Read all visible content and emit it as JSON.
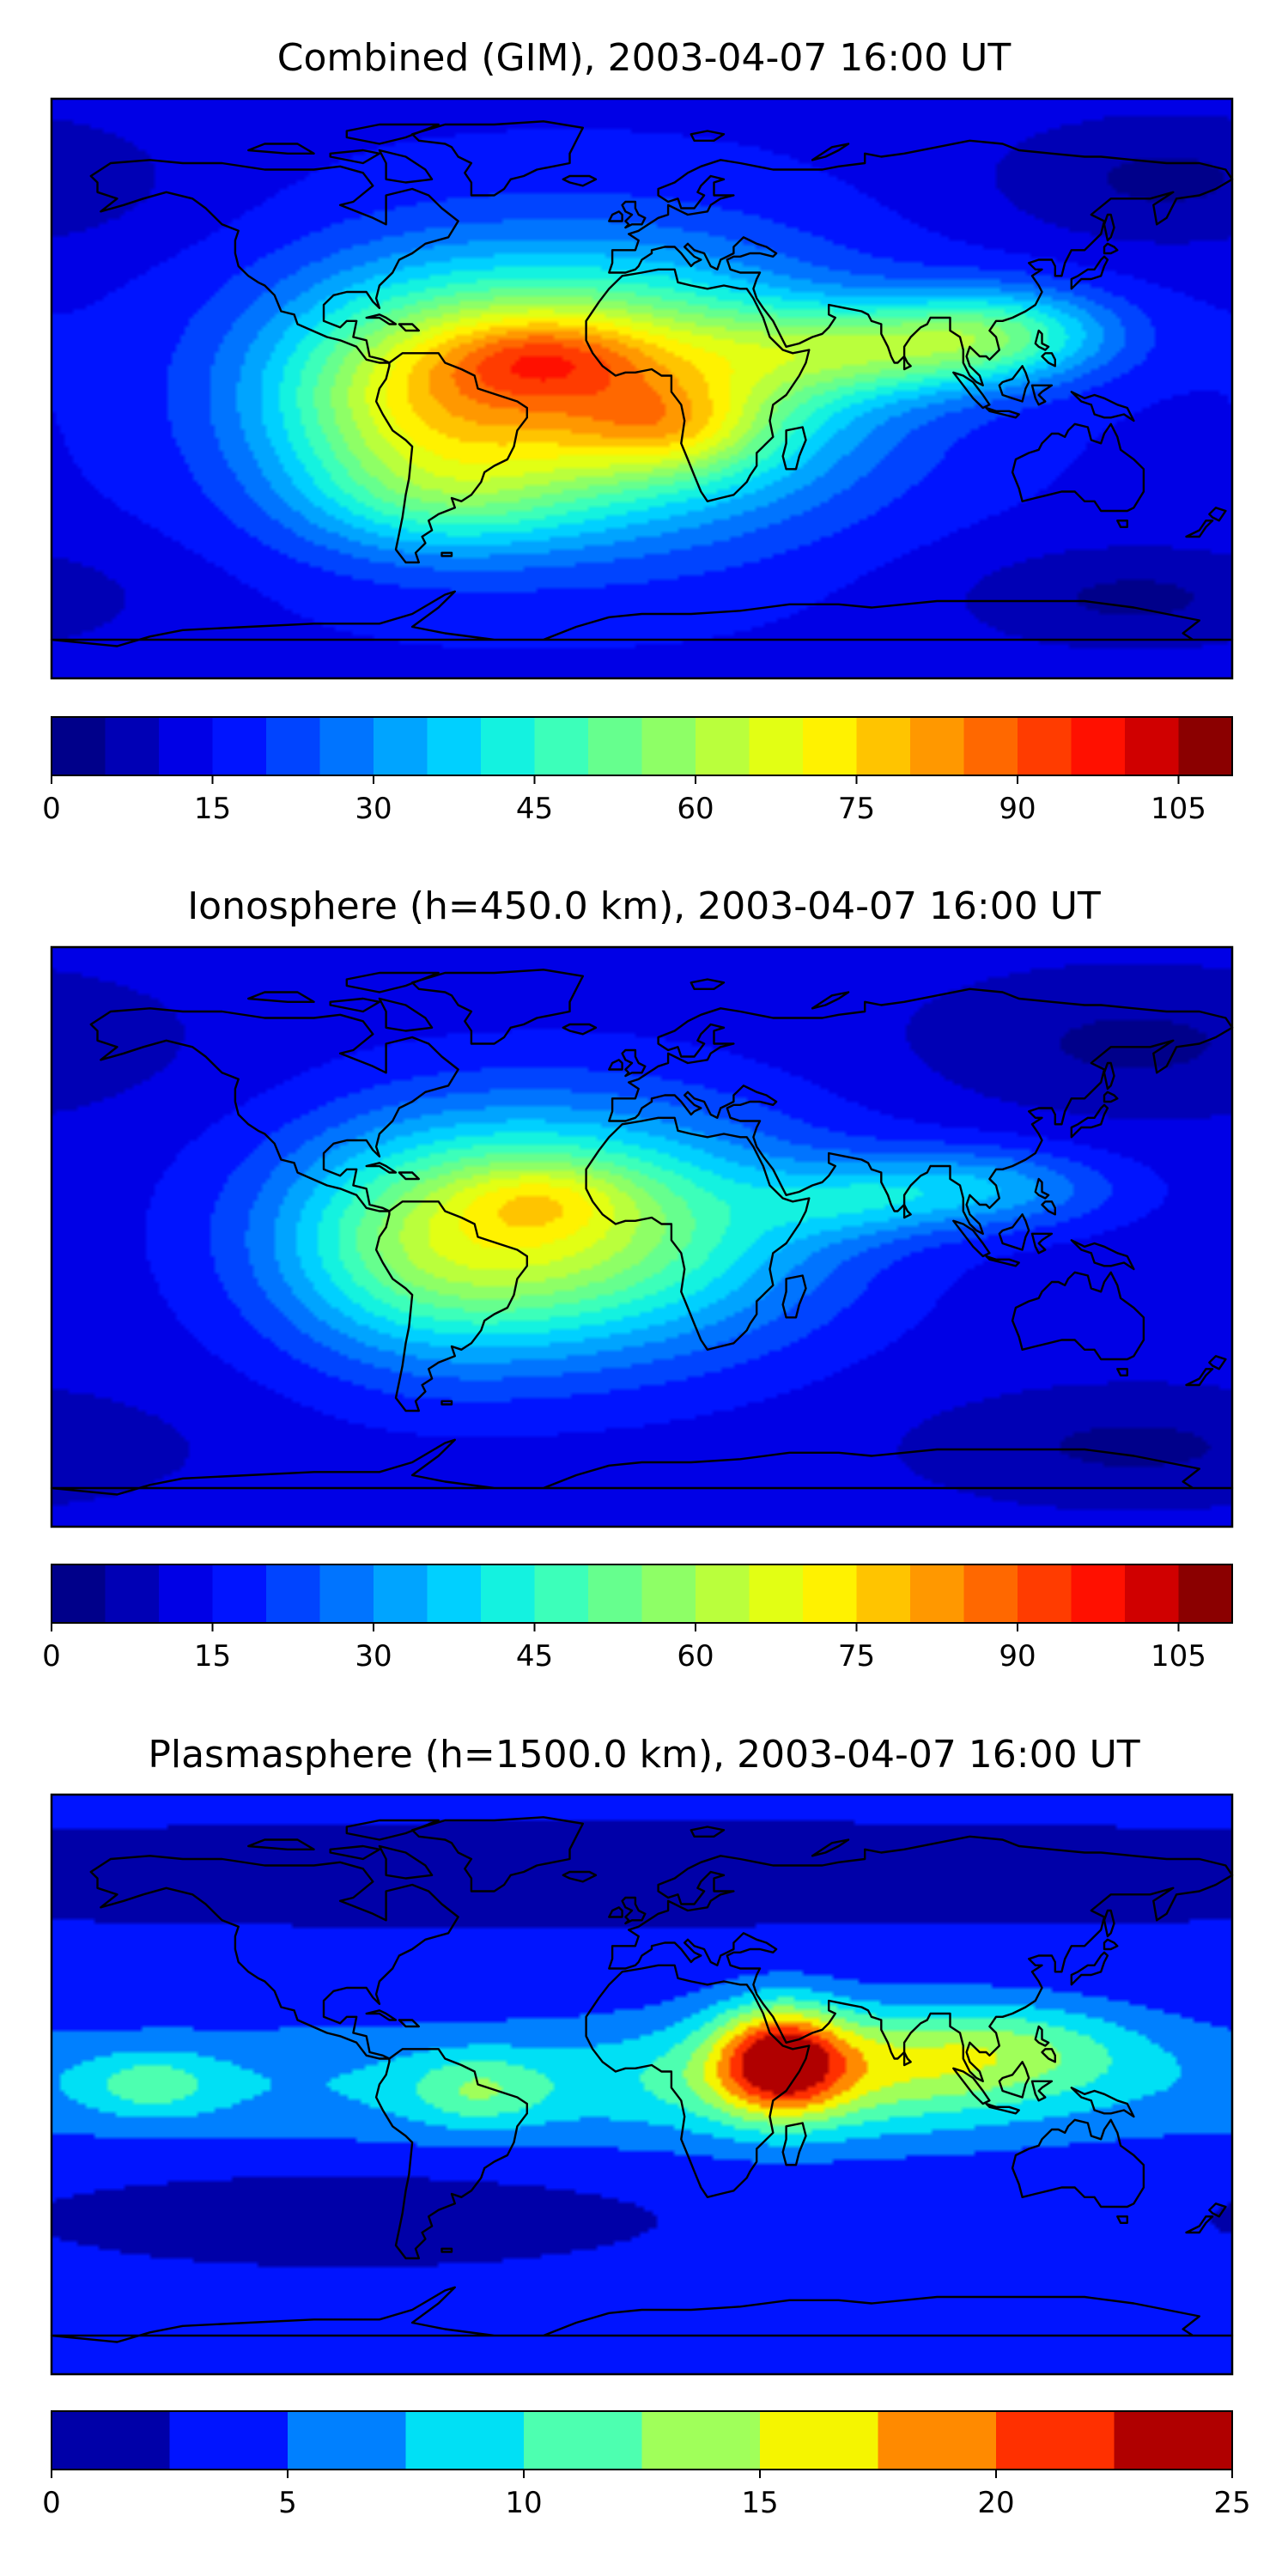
{
  "panels": [
    {
      "title": "Combined (GIM), 2003-04-07 16:00 UT",
      "colorbar": {
        "min": 0,
        "max": 110,
        "levels": 22,
        "colors": [
          "#00008a",
          "#0000b5",
          "#0000e6",
          "#0014ff",
          "#0044ff",
          "#0074ff",
          "#00a4ff",
          "#00d0ff",
          "#14f2e0",
          "#3cffba",
          "#66ff8e",
          "#8eff66",
          "#baff3c",
          "#e2ff14",
          "#fff200",
          "#ffc400",
          "#ff9800",
          "#ff6800",
          "#ff3c00",
          "#ff1000",
          "#d00000",
          "#8b0000"
        ],
        "ticks": [
          0,
          15,
          30,
          45,
          60,
          75,
          90,
          105
        ],
        "tick_labels": [
          "0",
          "15",
          "30",
          "45",
          "60",
          "75",
          "90",
          "105"
        ]
      },
      "field": {
        "base": 14,
        "blobs": [
          {
            "lon": -20,
            "lat": 0,
            "amp": 62,
            "sx": 55,
            "sy": 28
          },
          {
            "lon": -30,
            "lat": 10,
            "amp": 18,
            "sx": 22,
            "sy": 9
          },
          {
            "lon": 10,
            "lat": -12,
            "amp": 18,
            "sx": 20,
            "sy": 10
          },
          {
            "lon": -75,
            "lat": -5,
            "amp": 20,
            "sx": 30,
            "sy": 25
          },
          {
            "lon": 70,
            "lat": 12,
            "amp": 28,
            "sx": 35,
            "sy": 10
          },
          {
            "lon": 110,
            "lat": 18,
            "amp": 26,
            "sx": 25,
            "sy": 10
          },
          {
            "lon": -60,
            "lat": -35,
            "amp": 12,
            "sx": 30,
            "sy": 12
          },
          {
            "lon": 160,
            "lat": 65,
            "amp": -10,
            "sx": 40,
            "sy": 15
          },
          {
            "lon": 150,
            "lat": -65,
            "amp": -10,
            "sx": 40,
            "sy": 12
          }
        ]
      }
    },
    {
      "title": "Ionosphere  (h=450.0 km), 2003-04-07 16:00 UT",
      "colorbar": {
        "min": 0,
        "max": 110,
        "levels": 22,
        "colors": [
          "#00008a",
          "#0000b5",
          "#0000e6",
          "#0014ff",
          "#0044ff",
          "#0074ff",
          "#00a4ff",
          "#00d0ff",
          "#14f2e0",
          "#3cffba",
          "#66ff8e",
          "#8eff66",
          "#baff3c",
          "#e2ff14",
          "#fff200",
          "#ffc400",
          "#ff9800",
          "#ff6800",
          "#ff3c00",
          "#ff1000",
          "#d00000",
          "#8b0000"
        ],
        "ticks": [
          0,
          15,
          30,
          45,
          60,
          75,
          90,
          105
        ],
        "tick_labels": [
          "0",
          "15",
          "30",
          "45",
          "60",
          "75",
          "90",
          "105"
        ]
      },
      "field": {
        "base": 12,
        "blobs": [
          {
            "lon": -25,
            "lat": 2,
            "amp": 50,
            "sx": 52,
            "sy": 26
          },
          {
            "lon": -30,
            "lat": 12,
            "amp": 12,
            "sx": 18,
            "sy": 8
          },
          {
            "lon": -70,
            "lat": -5,
            "amp": 16,
            "sx": 30,
            "sy": 25
          },
          {
            "lon": 100,
            "lat": 15,
            "amp": 22,
            "sx": 30,
            "sy": 9
          },
          {
            "lon": 60,
            "lat": 10,
            "amp": 10,
            "sx": 20,
            "sy": 8
          },
          {
            "lon": 150,
            "lat": 60,
            "amp": -8,
            "sx": 45,
            "sy": 15
          },
          {
            "lon": 150,
            "lat": -65,
            "amp": -8,
            "sx": 45,
            "sy": 12
          }
        ]
      }
    },
    {
      "title": "Plasmasphere (h=1500.0 km), 2003-04-07 16:00 UT",
      "colorbar": {
        "min": 0,
        "max": 25,
        "levels": 10,
        "colors": [
          "#0000a8",
          "#0014ff",
          "#0080ff",
          "#00e0f5",
          "#4dffb0",
          "#a0ff5a",
          "#f5f500",
          "#ff8a00",
          "#ff3000",
          "#b00000"
        ],
        "ticks": [
          0,
          5,
          10,
          15,
          20,
          25
        ],
        "tick_labels": [
          "0",
          "5",
          "10",
          "15",
          "20",
          "25"
        ]
      },
      "field": {
        "base": 3,
        "blobs": [
          {
            "lon": 0,
            "lat": 0,
            "amp": 5,
            "sx": 200,
            "sy": 14
          },
          {
            "lon": 42,
            "lat": 8,
            "amp": 15,
            "sx": 14,
            "sy": 12
          },
          {
            "lon": 60,
            "lat": 5,
            "amp": 6,
            "sx": 40,
            "sy": 14
          },
          {
            "lon": 110,
            "lat": 12,
            "amp": 6,
            "sx": 30,
            "sy": 10
          },
          {
            "lon": -50,
            "lat": -2,
            "amp": 5,
            "sx": 15,
            "sy": 8
          },
          {
            "lon": -150,
            "lat": 0,
            "amp": 5,
            "sx": 15,
            "sy": 7
          },
          {
            "lon": -90,
            "lat": -40,
            "amp": -2,
            "sx": 60,
            "sy": 10
          },
          {
            "lon": 0,
            "lat": 65,
            "amp": -2,
            "sx": 200,
            "sy": 10
          }
        ]
      }
    }
  ]
}
